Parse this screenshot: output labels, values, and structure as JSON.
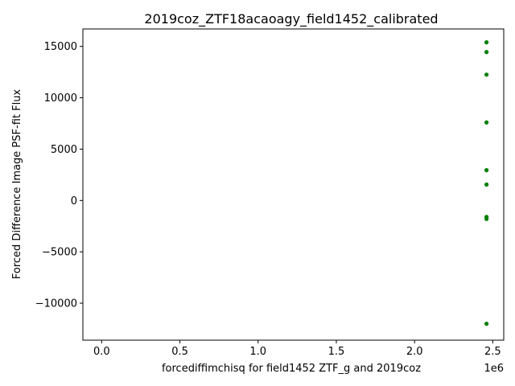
{
  "chart_data": {
    "type": "scatter",
    "title": "2019coz_ZTF18acaoagy_field1452_calibrated",
    "xlabel": "forcediffimchisq for field1452 ZTF_g and 2019coz",
    "ylabel": "Forced Difference Image PSF-fit Flux",
    "x_offset_label": "1e6",
    "xlim": [
      -120000,
      2570000
    ],
    "ylim": [
      -13600,
      16700
    ],
    "x_ticks": [
      0,
      500000,
      1000000,
      1500000,
      2000000,
      2500000
    ],
    "x_tick_labels": [
      "0.0",
      "0.5",
      "1.0",
      "1.5",
      "2.0",
      "2.5"
    ],
    "y_ticks": [
      -10000,
      -5000,
      0,
      5000,
      10000,
      15000
    ],
    "y_tick_labels": [
      "−10000",
      "−5000",
      "0",
      "5000",
      "10000",
      "15000"
    ],
    "grid": false,
    "marker_color": "#008000",
    "series": [
      {
        "x": [
          2460000,
          2460000,
          2460000,
          2460000,
          2460000,
          2460000,
          2460000,
          2460000,
          2460000
        ],
        "y": [
          15400,
          14450,
          12250,
          7600,
          2950,
          1550,
          -1600,
          -1800,
          -12000
        ]
      }
    ]
  }
}
